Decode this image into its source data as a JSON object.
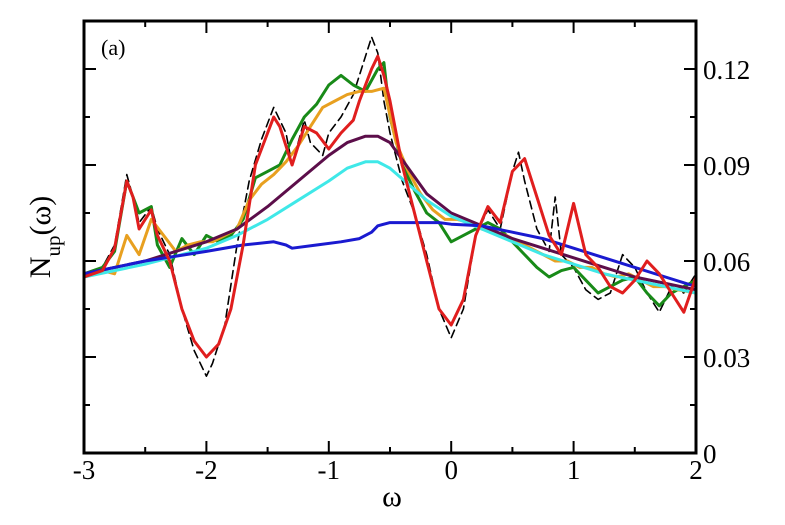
{
  "chart_data": {
    "type": "line",
    "title": "",
    "panel_label": "(a)",
    "xlabel": "ω",
    "ylabel_main": "N",
    "ylabel_paren": "(ω)",
    "ylabel_sub": "up",
    "xlim": [
      -3,
      2
    ],
    "ylim": [
      0,
      0.135
    ],
    "x_ticks": [
      -3,
      -2,
      -1,
      0,
      1,
      2
    ],
    "x_tick_labels": [
      "-3",
      "-2",
      "-1",
      "0",
      "1",
      "2"
    ],
    "y_ticks": [
      0,
      0.03,
      0.06,
      0.09,
      0.12
    ],
    "y_tick_labels": [
      "0",
      "0.03",
      "0.06",
      "0.09",
      "0.12"
    ],
    "y_axis_side": "right",
    "grid": false,
    "legend": "none",
    "series": [
      {
        "color": "#000000",
        "dashed": true,
        "x": [
          -3,
          -2.85,
          -2.75,
          -2.65,
          -2.6,
          -2.55,
          -2.45,
          -2.4,
          -2.3,
          -2.2,
          -2.1,
          -2.0,
          -1.95,
          -1.85,
          -1.75,
          -1.65,
          -1.55,
          -1.45,
          -1.35,
          -1.3,
          -1.2,
          -1.15,
          -1.05,
          -1.0,
          -0.9,
          -0.8,
          -0.75,
          -0.65,
          -0.6,
          -0.55,
          -0.5,
          -0.4,
          -0.3,
          -0.2,
          -0.1,
          0.0,
          0.1,
          0.2,
          0.3,
          0.4,
          0.5,
          0.55,
          0.6,
          0.7,
          0.8,
          0.85,
          0.9,
          1.0,
          1.1,
          1.2,
          1.3,
          1.4,
          1.5,
          1.6,
          1.7,
          1.8,
          1.9,
          2.0
        ],
        "y": [
          0.055,
          0.058,
          0.065,
          0.087,
          0.08,
          0.072,
          0.077,
          0.07,
          0.062,
          0.045,
          0.032,
          0.024,
          0.028,
          0.04,
          0.065,
          0.085,
          0.098,
          0.108,
          0.1,
          0.09,
          0.104,
          0.097,
          0.093,
          0.1,
          0.105,
          0.112,
          0.118,
          0.13,
          0.125,
          0.11,
          0.1,
          0.085,
          0.075,
          0.062,
          0.045,
          0.036,
          0.045,
          0.068,
          0.076,
          0.07,
          0.088,
          0.094,
          0.085,
          0.07,
          0.063,
          0.08,
          0.062,
          0.058,
          0.051,
          0.048,
          0.05,
          0.062,
          0.058,
          0.05,
          0.044,
          0.052,
          0.05,
          0.056
        ]
      },
      {
        "color": "#188a18",
        "dashed": false,
        "x": [
          -3,
          -2.85,
          -2.75,
          -2.65,
          -2.6,
          -2.55,
          -2.45,
          -2.4,
          -2.3,
          -2.2,
          -2.1,
          -2.0,
          -1.9,
          -1.8,
          -1.7,
          -1.6,
          -1.5,
          -1.4,
          -1.3,
          -1.2,
          -1.1,
          -1.0,
          -0.9,
          -0.8,
          -0.7,
          -0.6,
          -0.55,
          -0.5,
          -0.4,
          -0.3,
          -0.2,
          -0.1,
          0.0,
          0.1,
          0.2,
          0.3,
          0.4,
          0.5,
          0.6,
          0.7,
          0.8,
          0.9,
          1.0,
          1.1,
          1.2,
          1.3,
          1.4,
          1.5,
          1.6,
          1.7,
          1.8,
          1.9,
          2.0
        ],
        "y": [
          0.056,
          0.058,
          0.063,
          0.085,
          0.08,
          0.075,
          0.077,
          0.065,
          0.058,
          0.067,
          0.062,
          0.068,
          0.066,
          0.068,
          0.073,
          0.086,
          0.088,
          0.09,
          0.098,
          0.105,
          0.109,
          0.115,
          0.118,
          0.115,
          0.113,
          0.12,
          0.122,
          0.105,
          0.09,
          0.082,
          0.075,
          0.072,
          0.066,
          0.068,
          0.07,
          0.072,
          0.07,
          0.066,
          0.062,
          0.058,
          0.055,
          0.057,
          0.058,
          0.054,
          0.05,
          0.052,
          0.054,
          0.055,
          0.05,
          0.046,
          0.05,
          0.052,
          0.054
        ]
      },
      {
        "color": "#e8a020",
        "dashed": false,
        "x": [
          -3,
          -2.85,
          -2.75,
          -2.65,
          -2.55,
          -2.45,
          -2.35,
          -2.25,
          -2.15,
          -2.05,
          -1.95,
          -1.85,
          -1.75,
          -1.65,
          -1.55,
          -1.45,
          -1.35,
          -1.25,
          -1.15,
          -1.05,
          -0.95,
          -0.85,
          -0.75,
          -0.65,
          -0.55,
          -0.45,
          -0.35,
          -0.25,
          -0.15,
          -0.05,
          0.05,
          0.15,
          0.25,
          0.35,
          0.45,
          0.55,
          0.65,
          0.75,
          0.85,
          0.95,
          1.05,
          1.15,
          1.25,
          1.35,
          1.45,
          1.55,
          1.65,
          1.75,
          1.85,
          2.0
        ],
        "y": [
          0.055,
          0.057,
          0.056,
          0.068,
          0.062,
          0.073,
          0.068,
          0.063,
          0.065,
          0.066,
          0.066,
          0.068,
          0.07,
          0.079,
          0.084,
          0.087,
          0.091,
          0.096,
          0.102,
          0.108,
          0.11,
          0.112,
          0.113,
          0.113,
          0.114,
          0.097,
          0.088,
          0.081,
          0.076,
          0.073,
          0.073,
          0.072,
          0.07,
          0.069,
          0.068,
          0.066,
          0.064,
          0.062,
          0.06,
          0.06,
          0.058,
          0.058,
          0.056,
          0.055,
          0.056,
          0.054,
          0.052,
          0.052,
          0.051,
          0.05
        ]
      },
      {
        "color": "#5c0e4a",
        "dashed": false,
        "x": [
          -3,
          -2.5,
          -2.0,
          -1.75,
          -1.5,
          -1.25,
          -1.0,
          -0.85,
          -0.7,
          -0.6,
          -0.5,
          -0.35,
          -0.2,
          0.0,
          0.25,
          0.5,
          0.75,
          1.0,
          1.25,
          1.5,
          1.75,
          2.0
        ],
        "y": [
          0.056,
          0.06,
          0.066,
          0.07,
          0.077,
          0.085,
          0.093,
          0.097,
          0.099,
          0.099,
          0.097,
          0.089,
          0.081,
          0.075,
          0.071,
          0.067,
          0.064,
          0.061,
          0.058,
          0.055,
          0.053,
          0.051
        ]
      },
      {
        "color": "#3fe8e8",
        "dashed": false,
        "x": [
          -3,
          -2.5,
          -2.0,
          -1.75,
          -1.5,
          -1.25,
          -1.0,
          -0.85,
          -0.7,
          -0.6,
          -0.5,
          -0.35,
          -0.2,
          0.0,
          0.25,
          0.5,
          0.75,
          1.0,
          1.25,
          1.5,
          1.75,
          2.0
        ],
        "y": [
          0.055,
          0.059,
          0.064,
          0.068,
          0.073,
          0.079,
          0.085,
          0.089,
          0.091,
          0.091,
          0.089,
          0.084,
          0.079,
          0.074,
          0.07,
          0.066,
          0.062,
          0.059,
          0.056,
          0.054,
          0.052,
          0.05
        ]
      },
      {
        "color": "#1a1ad0",
        "dashed": false,
        "x": [
          -3,
          -2.5,
          -2.0,
          -1.7,
          -1.45,
          -1.35,
          -1.3,
          -1.1,
          -0.9,
          -0.75,
          -0.65,
          -0.6,
          -0.5,
          -0.3,
          -0.1,
          0.0,
          0.25,
          0.5,
          0.75,
          1.0,
          1.25,
          1.5,
          1.75,
          2.0
        ],
        "y": [
          0.056,
          0.06,
          0.063,
          0.065,
          0.066,
          0.065,
          0.064,
          0.065,
          0.066,
          0.067,
          0.069,
          0.071,
          0.072,
          0.072,
          0.072,
          0.0715,
          0.071,
          0.069,
          0.067,
          0.064,
          0.061,
          0.058,
          0.055,
          0.052
        ]
      },
      {
        "color": "#e01e1e",
        "dashed": false,
        "x": [
          -3,
          -2.85,
          -2.75,
          -2.65,
          -2.6,
          -2.55,
          -2.45,
          -2.4,
          -2.3,
          -2.2,
          -2.1,
          -2.0,
          -1.9,
          -1.8,
          -1.7,
          -1.6,
          -1.5,
          -1.45,
          -1.4,
          -1.3,
          -1.2,
          -1.1,
          -1.0,
          -0.9,
          -0.8,
          -0.75,
          -0.7,
          -0.65,
          -0.6,
          -0.55,
          -0.5,
          -0.4,
          -0.3,
          -0.2,
          -0.1,
          0.0,
          0.1,
          0.2,
          0.3,
          0.4,
          0.5,
          0.6,
          0.7,
          0.8,
          0.9,
          1.0,
          1.1,
          1.2,
          1.3,
          1.4,
          1.5,
          1.6,
          1.7,
          1.8,
          1.9,
          2.0
        ],
        "y": [
          0.055,
          0.057,
          0.064,
          0.085,
          0.08,
          0.07,
          0.076,
          0.068,
          0.06,
          0.045,
          0.035,
          0.03,
          0.034,
          0.045,
          0.065,
          0.09,
          0.1,
          0.105,
          0.102,
          0.09,
          0.102,
          0.1,
          0.095,
          0.1,
          0.104,
          0.11,
          0.115,
          0.12,
          0.124,
          0.118,
          0.11,
          0.09,
          0.075,
          0.06,
          0.045,
          0.04,
          0.048,
          0.068,
          0.077,
          0.072,
          0.088,
          0.092,
          0.08,
          0.068,
          0.062,
          0.078,
          0.062,
          0.058,
          0.052,
          0.05,
          0.054,
          0.06,
          0.056,
          0.05,
          0.044,
          0.055
        ]
      }
    ]
  }
}
